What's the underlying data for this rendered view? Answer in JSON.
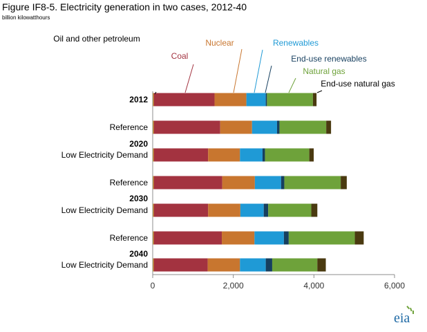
{
  "chart_data": {
    "type": "bar",
    "orientation": "horizontal",
    "stacked": true,
    "title": "Figure IF8-5. Electricity generation in two cases, 2012-40",
    "subtitle": "billion kilowatthours",
    "xlim": [
      0,
      6000
    ],
    "xticks": [
      "0",
      "2,000",
      "4,000",
      "6,000"
    ],
    "grid": false,
    "rows": [
      {
        "label": "2012",
        "group": ""
      },
      {
        "label": "Reference",
        "group": "2020"
      },
      {
        "label": "Low Electricity Demand",
        "group": "2020"
      },
      {
        "label": "Reference",
        "group": "2030"
      },
      {
        "label": "Low Electricity Demand",
        "group": "2030"
      },
      {
        "label": "Reference",
        "group": "2040"
      },
      {
        "label": "Low Electricity Demand",
        "group": "2040"
      }
    ],
    "group_labels": [
      "2020",
      "2030",
      "2040"
    ],
    "series": [
      {
        "name": "Oil and other petroleum",
        "color": "#d9a81b",
        "values": [
          25,
          25,
          25,
          25,
          25,
          25,
          25
        ]
      },
      {
        "name": "Coal",
        "color": "#a33340",
        "values": [
          1510,
          1650,
          1350,
          1700,
          1350,
          1690,
          1340
        ]
      },
      {
        "name": "Nuclear",
        "color": "#c8762f",
        "values": [
          790,
          790,
          790,
          810,
          800,
          810,
          800
        ]
      },
      {
        "name": "Renewables",
        "color": "#1f9ad6",
        "values": [
          480,
          620,
          560,
          650,
          580,
          730,
          640
        ]
      },
      {
        "name": "End-use renewables",
        "color": "#163f5f",
        "values": [
          30,
          60,
          60,
          80,
          110,
          120,
          160
        ]
      },
      {
        "name": "Natural gas",
        "color": "#6ea23a",
        "values": [
          1140,
          1160,
          1100,
          1400,
          1070,
          1640,
          1120
        ]
      },
      {
        "name": "End-use natural gas",
        "color": "#4a3a10",
        "values": [
          90,
          120,
          110,
          150,
          150,
          220,
          210
        ]
      }
    ]
  },
  "brand": {
    "logo_text": "eia",
    "logo_name": "eia-logo"
  }
}
